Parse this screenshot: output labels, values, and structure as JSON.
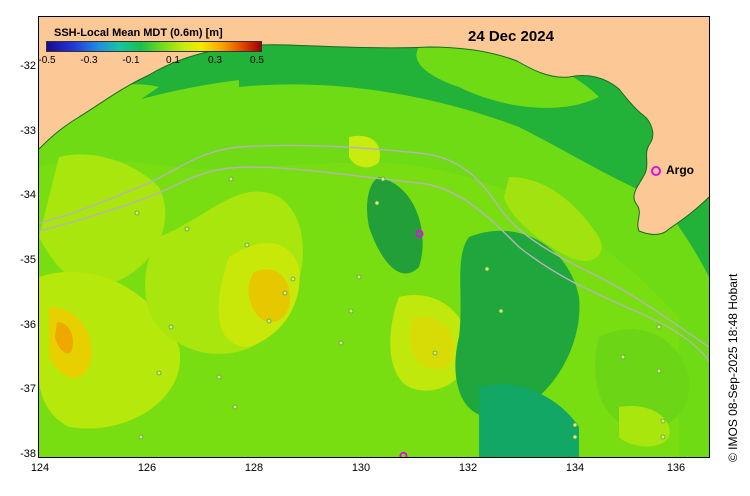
{
  "colorbar": {
    "title": "SSH-Local Mean MDT (0.6m) [m]",
    "ticks": [
      "-0.5",
      "-0.3",
      "-0.1",
      "0.1",
      "0.3",
      "0.5"
    ]
  },
  "date": "24 Dec 2024",
  "legend": {
    "argo_label": "Argo",
    "argo_color": "#e010e0"
  },
  "credit": "© IMOS 08-Sep-2025 18:48 Hobart",
  "axes": {
    "x_ticks": [
      "124",
      "126",
      "128",
      "130",
      "132",
      "134",
      "136"
    ],
    "y_ticks": [
      "-32",
      "-33",
      "-34",
      "-35",
      "-36",
      "-37",
      "-38"
    ]
  },
  "colors": {
    "land": "#fbc896",
    "ocean_base": "#24b43a",
    "bathymetry_contour": "#b4b4b4",
    "argo": "#e010e0"
  },
  "map_data": {
    "lon_range": [
      124,
      136.5
    ],
    "lat_range": [
      -31.3,
      -38.1
    ],
    "argo_floats": [
      {
        "lon": 131.1,
        "lat": -34.65
      },
      {
        "lon": 130.8,
        "lat": -38.08
      }
    ]
  }
}
